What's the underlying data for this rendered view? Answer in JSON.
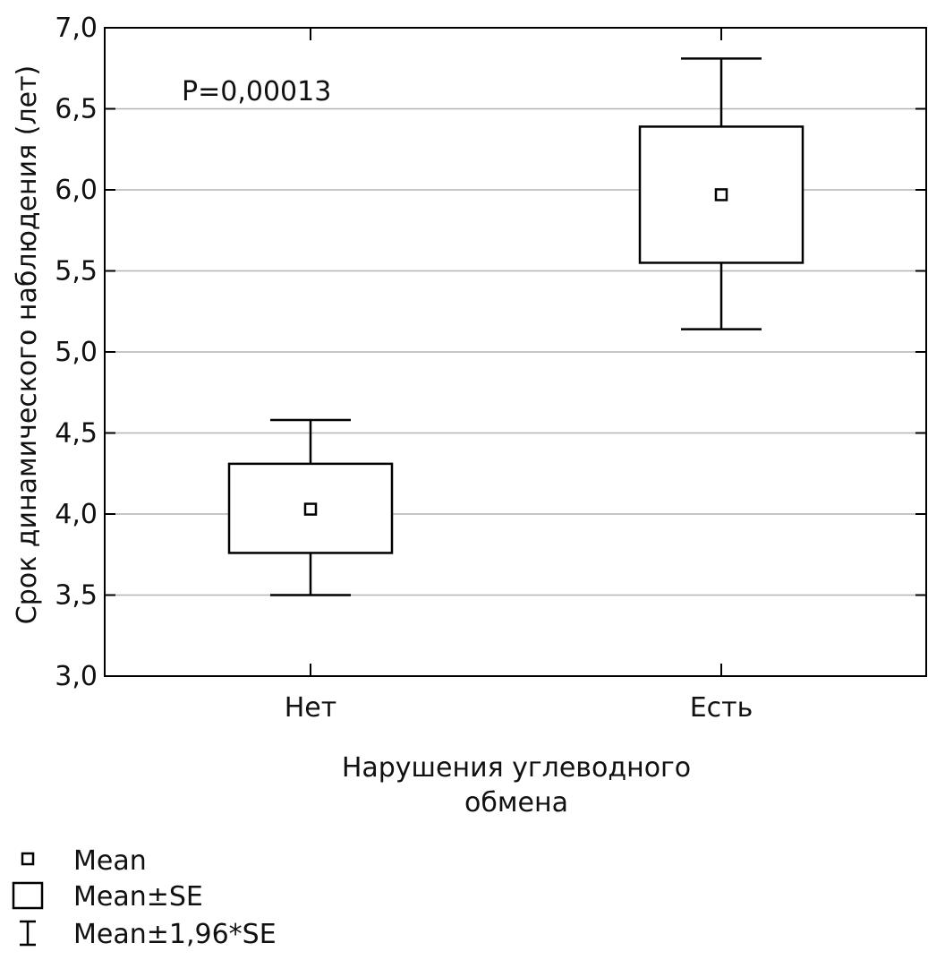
{
  "chart_data": {
    "type": "box",
    "annotation": "P=0,00013",
    "ylabel": "Срок динамического наблюдения (лет)",
    "xlabel_lines": [
      "Нарушения углеводного",
      "обмена"
    ],
    "ylim": [
      3.0,
      7.0
    ],
    "yticks": [
      3.0,
      3.5,
      4.0,
      4.5,
      5.0,
      5.5,
      6.0,
      6.5,
      7.0
    ],
    "ytick_labels": [
      "3,0",
      "3,5",
      "4,0",
      "4,5",
      "5,0",
      "5,5",
      "6,0",
      "6,5",
      "7,0"
    ],
    "grid": true,
    "categories": [
      "Нет",
      "Есть"
    ],
    "groups": [
      {
        "category": "Нет",
        "mean": 4.03,
        "se_low": 3.76,
        "se_high": 4.31,
        "ci_low": 3.5,
        "ci_high": 4.58
      },
      {
        "category": "Есть",
        "mean": 5.97,
        "se_low": 5.55,
        "se_high": 6.39,
        "ci_low": 5.14,
        "ci_high": 6.81
      }
    ],
    "legend": {
      "placement": "bottom-left",
      "entries": [
        {
          "symbol": "small-square-icon",
          "label": "Mean"
        },
        {
          "symbol": "box-icon",
          "label": "Mean±SE"
        },
        {
          "symbol": "whisker-icon",
          "label": "Mean±1,96*SE"
        }
      ]
    }
  }
}
